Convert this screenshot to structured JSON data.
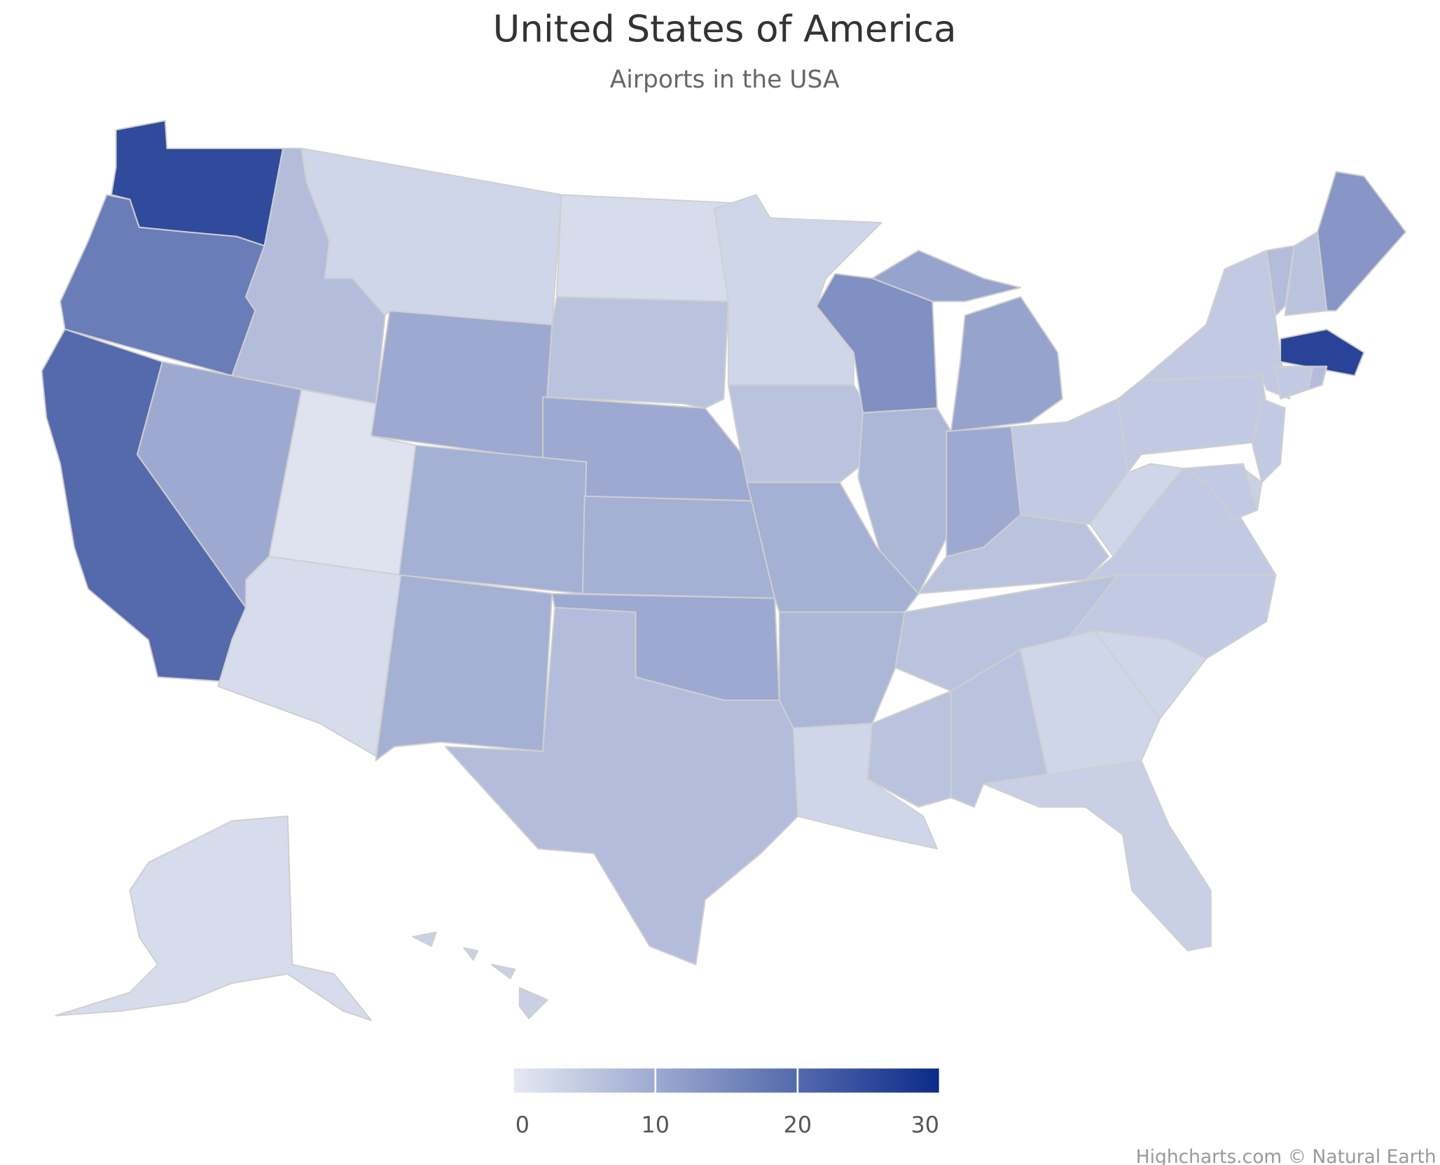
{
  "chart_data": {
    "type": "map",
    "title": "United States of America",
    "subtitle": "Airports in the USA",
    "credits": "Highcharts.com © Natural Earth",
    "values": [
      25,
      17,
      20,
      7,
      3,
      2,
      6,
      3,
      10,
      10,
      6,
      14,
      11,
      8,
      10,
      5,
      10,
      1,
      2,
      9,
      9,
      9,
      10,
      7,
      9,
      8,
      3,
      6,
      6,
      6,
      6,
      3,
      5,
      5,
      3,
      3,
      4,
      5,
      5,
      7,
      6,
      13,
      26,
      5,
      7,
      5,
      4,
      5,
      2,
      4
    ],
    "colorlim": [
      0,
      30
    ],
    "colorticks": [
      0,
      10,
      20,
      30
    ],
    "min_color": "#e6e9f3",
    "max_color": "#0b2a8a"
  }
}
